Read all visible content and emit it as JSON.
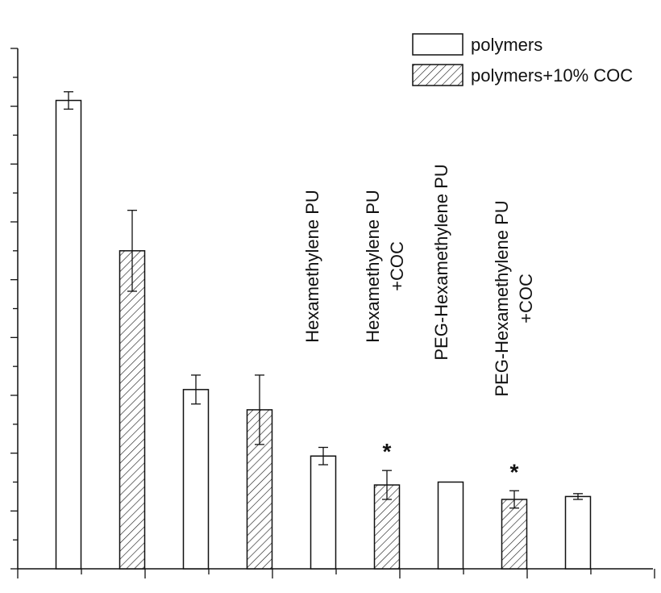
{
  "chart_data": {
    "type": "bar",
    "title": "",
    "xlabel": "",
    "ylabel": "",
    "categories": [
      "",
      "",
      "",
      "",
      "",
      "",
      "",
      "",
      "",
      ""
    ],
    "series": [
      {
        "name": "polymers",
        "values": [
          81,
          null,
          31,
          null,
          19.5,
          null,
          15,
          null,
          12.5,
          null
        ],
        "errors": [
          1.5,
          null,
          2.5,
          null,
          1.5,
          null,
          null,
          null,
          0.5,
          null
        ],
        "pattern": "open"
      },
      {
        "name": "polymers+10% COC",
        "values": [
          null,
          55,
          null,
          27.5,
          null,
          14.5,
          null,
          12,
          null,
          null
        ],
        "errors": [
          null,
          7,
          null,
          6,
          null,
          2.5,
          null,
          1.5,
          null,
          null
        ],
        "pattern": "hatched"
      }
    ],
    "ylim": [
      0,
      90
    ],
    "grid": false,
    "legend_position": "top-right",
    "annotations": [
      {
        "text": "Hexamethylene PU",
        "bar_index": 4
      },
      {
        "text": "Hexamethylene PU\n+COC",
        "bar_index": 5
      },
      {
        "text": "PEG-Hexamethylene PU",
        "bar_index": 6
      },
      {
        "text": "PEG-Hexamethylene PU\n+COC",
        "bar_index": 7
      }
    ],
    "significance_marks": [
      {
        "text": "*",
        "bar_index": 5
      },
      {
        "text": "*",
        "bar_index": 7
      }
    ]
  },
  "colors": {
    "line": "#111111",
    "bar_fill": "#ffffff",
    "background": "#ffffff"
  }
}
